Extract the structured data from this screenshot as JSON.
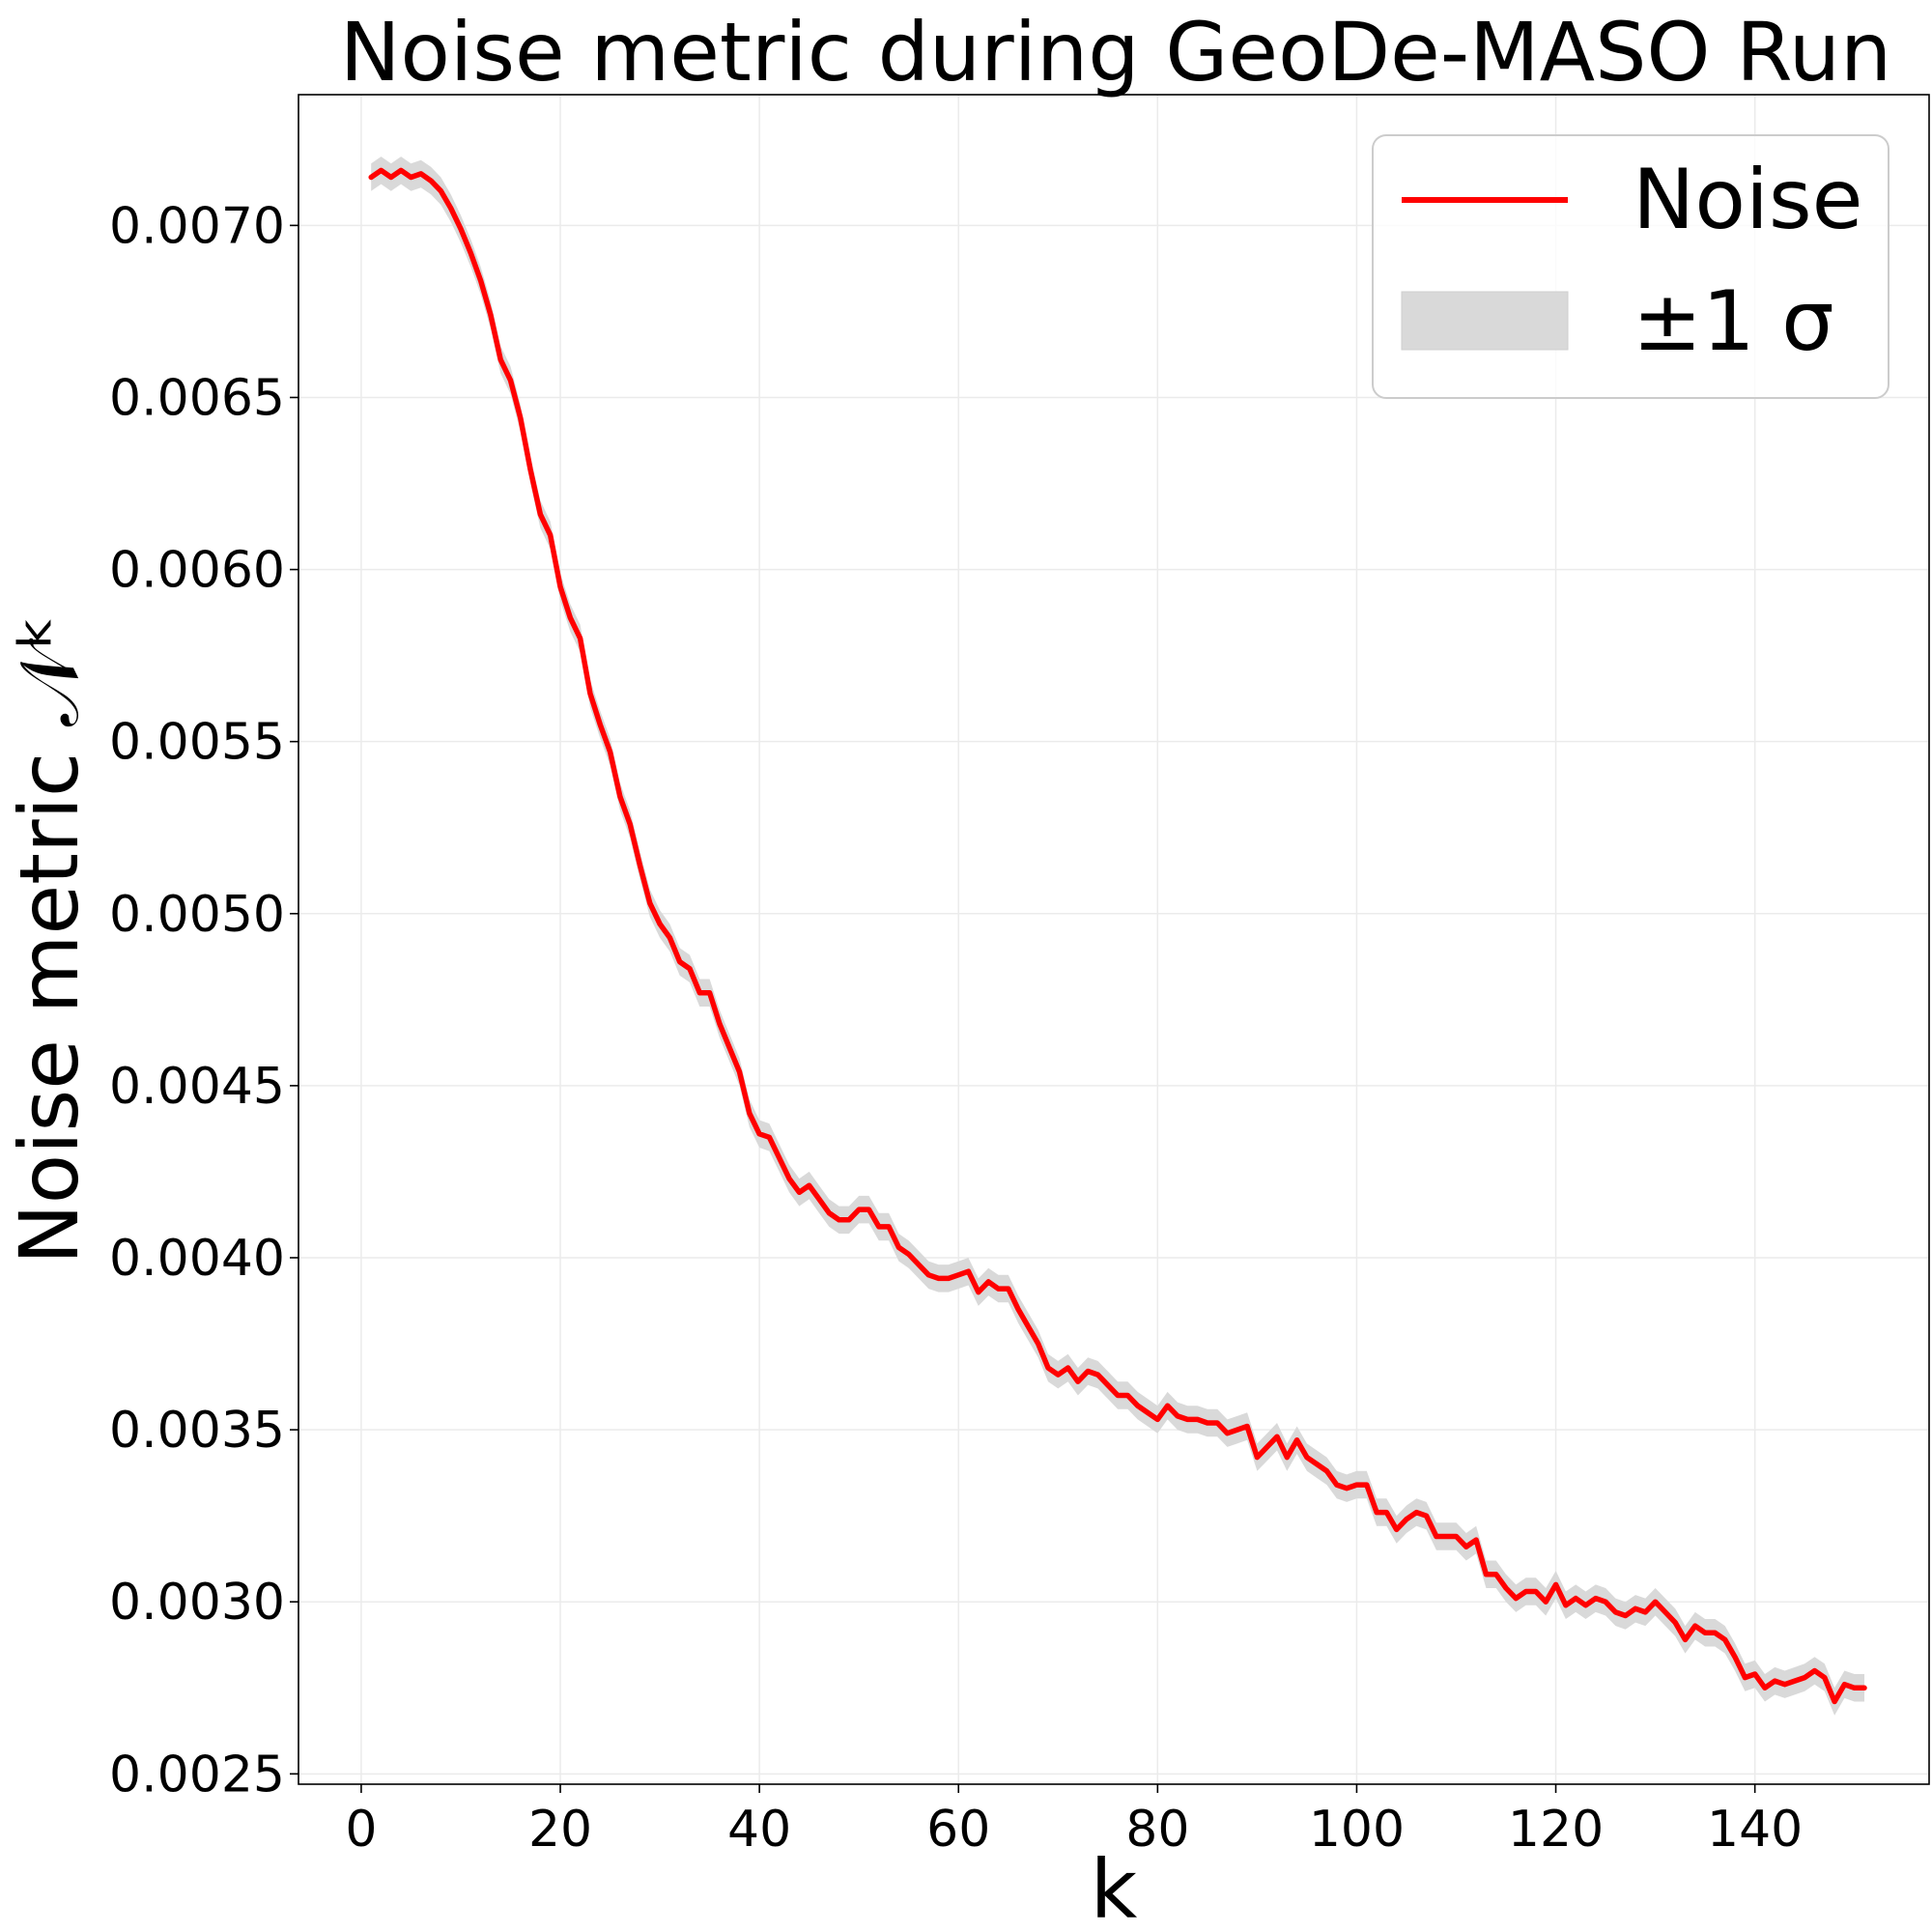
{
  "chart_data": {
    "type": "line",
    "title": "Noise metric during GeoDe-MASO Run",
    "xlabel": "k",
    "ylabel": "Noise metric 𝒩ᵏ",
    "xlim": [
      -6.3,
      157.5
    ],
    "ylim": [
      0.00247,
      0.00738
    ],
    "xticks": [
      0,
      20,
      40,
      60,
      80,
      100,
      120,
      140
    ],
    "xtick_labels": [
      "0",
      "20",
      "40",
      "60",
      "80",
      "100",
      "120",
      "140"
    ],
    "yticks": [
      0.0025,
      0.003,
      0.0035,
      0.004,
      0.0045,
      0.005,
      0.0055,
      0.006,
      0.0065,
      0.007
    ],
    "ytick_labels": [
      "0.0025",
      "0.0030",
      "0.0035",
      "0.0040",
      "0.0045",
      "0.0050",
      "0.0055",
      "0.0060",
      "0.0065",
      "0.0070"
    ],
    "grid": true,
    "legend_position": "top-right",
    "colors": {
      "line": "#ff0000",
      "band": "#d9d9d9",
      "grid": "#ebebeb"
    },
    "series": [
      {
        "name": "Noise",
        "style": "line",
        "points": [
          [
            1,
            0.00714
          ],
          [
            2,
            0.00716
          ],
          [
            3,
            0.00714
          ],
          [
            4,
            0.00716
          ],
          [
            5,
            0.00714
          ],
          [
            6,
            0.00715
          ],
          [
            7,
            0.00713
          ],
          [
            8,
            0.0071
          ],
          [
            9,
            0.00705
          ],
          [
            10,
            0.00699
          ],
          [
            11,
            0.00692
          ],
          [
            12,
            0.00684
          ],
          [
            13,
            0.00674
          ],
          [
            14,
            0.00661
          ],
          [
            15,
            0.00655
          ],
          [
            16,
            0.00644
          ],
          [
            17,
            0.00629
          ],
          [
            18,
            0.00616
          ],
          [
            19,
            0.0061
          ],
          [
            20,
            0.00595
          ],
          [
            21,
            0.00586
          ],
          [
            22,
            0.0058
          ],
          [
            23,
            0.00564
          ],
          [
            24,
            0.00555
          ],
          [
            25,
            0.00547
          ],
          [
            26,
            0.00534
          ],
          [
            27,
            0.00526
          ],
          [
            28,
            0.00514
          ],
          [
            29,
            0.00503
          ],
          [
            30,
            0.00497
          ],
          [
            31,
            0.00493
          ],
          [
            32,
            0.00486
          ],
          [
            33,
            0.00484
          ],
          [
            34,
            0.00477
          ],
          [
            35,
            0.00477
          ],
          [
            36,
            0.00468
          ],
          [
            37,
            0.00461
          ],
          [
            38,
            0.00454
          ],
          [
            39,
            0.00442
          ],
          [
            40,
            0.00436
          ],
          [
            41,
            0.00435
          ],
          [
            42,
            0.00429
          ],
          [
            43,
            0.00423
          ],
          [
            44,
            0.00419
          ],
          [
            45,
            0.00421
          ],
          [
            46,
            0.00417
          ],
          [
            47,
            0.00413
          ],
          [
            48,
            0.00411
          ],
          [
            49,
            0.00411
          ],
          [
            50,
            0.00414
          ],
          [
            51,
            0.00414
          ],
          [
            52,
            0.00409
          ],
          [
            53,
            0.00409
          ],
          [
            54,
            0.00403
          ],
          [
            55,
            0.00401
          ],
          [
            56,
            0.00398
          ],
          [
            57,
            0.00395
          ],
          [
            58,
            0.00394
          ],
          [
            59,
            0.00394
          ],
          [
            60,
            0.00395
          ],
          [
            61,
            0.00396
          ],
          [
            62,
            0.0039
          ],
          [
            63,
            0.00393
          ],
          [
            64,
            0.00391
          ],
          [
            65,
            0.00391
          ],
          [
            66,
            0.00385
          ],
          [
            67,
            0.0038
          ],
          [
            68,
            0.00375
          ],
          [
            69,
            0.00368
          ],
          [
            70,
            0.00366
          ],
          [
            71,
            0.00368
          ],
          [
            72,
            0.00364
          ],
          [
            73,
            0.00367
          ],
          [
            74,
            0.00366
          ],
          [
            75,
            0.00363
          ],
          [
            76,
            0.0036
          ],
          [
            77,
            0.0036
          ],
          [
            78,
            0.00357
          ],
          [
            79,
            0.00355
          ],
          [
            80,
            0.00353
          ],
          [
            81,
            0.00357
          ],
          [
            82,
            0.00354
          ],
          [
            83,
            0.00353
          ],
          [
            84,
            0.00353
          ],
          [
            85,
            0.00352
          ],
          [
            86,
            0.00352
          ],
          [
            87,
            0.00349
          ],
          [
            88,
            0.0035
          ],
          [
            89,
            0.00351
          ],
          [
            90,
            0.00342
          ],
          [
            91,
            0.00345
          ],
          [
            92,
            0.00348
          ],
          [
            93,
            0.00342
          ],
          [
            94,
            0.00347
          ],
          [
            95,
            0.00342
          ],
          [
            96,
            0.0034
          ],
          [
            97,
            0.00338
          ],
          [
            98,
            0.00334
          ],
          [
            99,
            0.00333
          ],
          [
            100,
            0.00334
          ],
          [
            101,
            0.00334
          ],
          [
            102,
            0.00326
          ],
          [
            103,
            0.00326
          ],
          [
            104,
            0.00321
          ],
          [
            105,
            0.00324
          ],
          [
            106,
            0.00326
          ],
          [
            107,
            0.00325
          ],
          [
            108,
            0.00319
          ],
          [
            109,
            0.00319
          ],
          [
            110,
            0.00319
          ],
          [
            111,
            0.00316
          ],
          [
            112,
            0.00318
          ],
          [
            113,
            0.00308
          ],
          [
            114,
            0.00308
          ],
          [
            115,
            0.00304
          ],
          [
            116,
            0.00301
          ],
          [
            117,
            0.00303
          ],
          [
            118,
            0.00303
          ],
          [
            119,
            0.003
          ],
          [
            120,
            0.00305
          ],
          [
            121,
            0.00299
          ],
          [
            122,
            0.00301
          ],
          [
            123,
            0.00299
          ],
          [
            124,
            0.00301
          ],
          [
            125,
            0.003
          ],
          [
            126,
            0.00297
          ],
          [
            127,
            0.00296
          ],
          [
            128,
            0.00298
          ],
          [
            129,
            0.00297
          ],
          [
            130,
            0.003
          ],
          [
            131,
            0.00297
          ],
          [
            132,
            0.00294
          ],
          [
            133,
            0.00289
          ],
          [
            134,
            0.00293
          ],
          [
            135,
            0.00291
          ],
          [
            136,
            0.00291
          ],
          [
            137,
            0.00289
          ],
          [
            138,
            0.00284
          ],
          [
            139,
            0.00278
          ],
          [
            140,
            0.00279
          ],
          [
            141,
            0.00275
          ],
          [
            142,
            0.00277
          ],
          [
            143,
            0.00276
          ],
          [
            144,
            0.00277
          ],
          [
            145,
            0.00278
          ],
          [
            146,
            0.0028
          ],
          [
            147,
            0.00278
          ],
          [
            148,
            0.00271
          ],
          [
            149,
            0.00276
          ],
          [
            150,
            0.00275
          ],
          [
            151,
            0.00275
          ]
        ]
      },
      {
        "name": "±1 σ",
        "style": "band",
        "sigma": 4e-05
      }
    ]
  }
}
